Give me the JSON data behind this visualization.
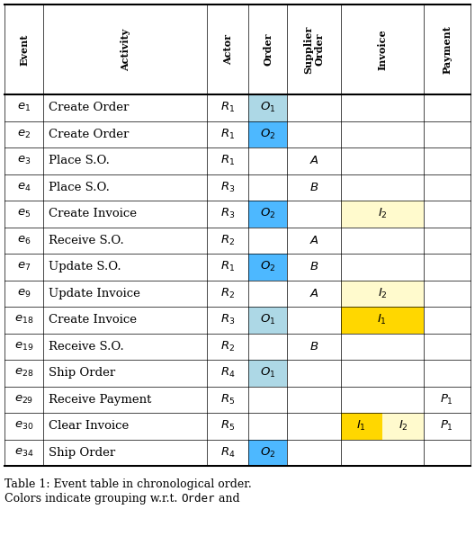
{
  "col_headers": [
    "Event",
    "Activity",
    "Actor",
    "Order",
    "Supplier\nOrder",
    "Invoice",
    "Payment"
  ],
  "rows": [
    {
      "event": "e_1",
      "activity": "Create Order",
      "actor": "R_1",
      "order": "O_1",
      "sup_order": "",
      "invoice": "",
      "payment": ""
    },
    {
      "event": "e_2",
      "activity": "Create Order",
      "actor": "R_1",
      "order": "O_2",
      "sup_order": "",
      "invoice": "",
      "payment": ""
    },
    {
      "event": "e_3",
      "activity": "Place S.O.",
      "actor": "R_1",
      "order": "",
      "sup_order": "A",
      "invoice": "",
      "payment": ""
    },
    {
      "event": "e_4",
      "activity": "Place S.O.",
      "actor": "R_3",
      "order": "",
      "sup_order": "B",
      "invoice": "",
      "payment": ""
    },
    {
      "event": "e_5",
      "activity": "Create Invoice",
      "actor": "R_3",
      "order": "O_2",
      "sup_order": "",
      "invoice": "I_2",
      "payment": ""
    },
    {
      "event": "e_6",
      "activity": "Receive S.O.",
      "actor": "R_2",
      "order": "",
      "sup_order": "A",
      "invoice": "",
      "payment": ""
    },
    {
      "event": "e_7",
      "activity": "Update S.O.",
      "actor": "R_1",
      "order": "O_2",
      "sup_order": "B",
      "invoice": "",
      "payment": ""
    },
    {
      "event": "e_9",
      "activity": "Update Invoice",
      "actor": "R_2",
      "order": "",
      "sup_order": "A",
      "invoice": "I_2",
      "payment": ""
    },
    {
      "event": "e_18",
      "activity": "Create Invoice",
      "actor": "R_3",
      "order": "O_1",
      "sup_order": "",
      "invoice": "I_1",
      "payment": ""
    },
    {
      "event": "e_19",
      "activity": "Receive S.O.",
      "actor": "R_2",
      "order": "",
      "sup_order": "B",
      "invoice": "",
      "payment": ""
    },
    {
      "event": "e_28",
      "activity": "Ship Order",
      "actor": "R_4",
      "order": "O_1",
      "sup_order": "",
      "invoice": "",
      "payment": ""
    },
    {
      "event": "e_29",
      "activity": "Receive Payment",
      "actor": "R_5",
      "order": "",
      "sup_order": "",
      "invoice": "",
      "payment": "P_1"
    },
    {
      "event": "e_30",
      "activity": "Clear Invoice",
      "actor": "R_5",
      "order": "",
      "sup_order": "",
      "invoice": "I_1 I_2",
      "payment": "P_1"
    },
    {
      "event": "e_34",
      "activity": "Ship Order",
      "actor": "R_4",
      "order": "O_2",
      "sup_order": "",
      "invoice": "",
      "payment": ""
    }
  ],
  "cell_colors": {
    "0_3": "#ADD8E6",
    "1_3": "#4DB8FF",
    "4_3": "#4DB8FF",
    "4_5": "#FFFACD",
    "6_3": "#4DB8FF",
    "7_5": "#FFFACD",
    "8_3": "#ADD8E6",
    "8_5": "#FFD700",
    "10_3": "#ADD8E6",
    "12_5a": "#FFD700",
    "12_5b": "#FFFACD",
    "13_3": "#4DB8FF"
  },
  "caption_line1": "Table 1: Event table in chronological order.",
  "caption_line2_pre": "Colors indicate grouping w.r.t. ",
  "caption_order": "Order",
  "caption_line2_post": " and"
}
